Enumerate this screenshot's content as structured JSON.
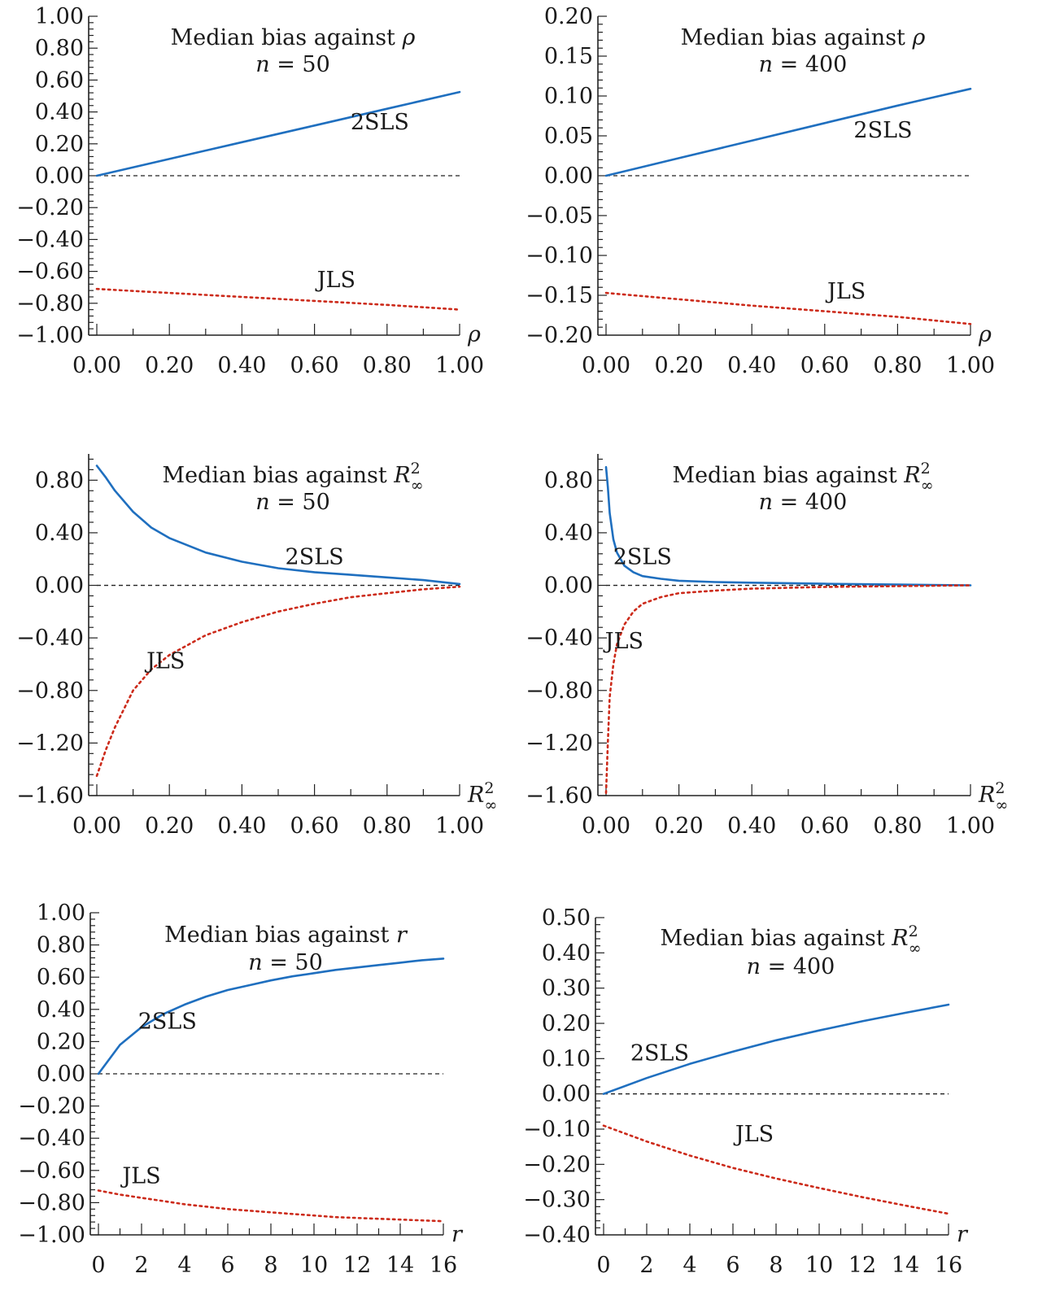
{
  "colors": {
    "tsls": "#1f6fbf",
    "jls": "#cc2a1a",
    "axis": "#222222"
  },
  "chart_data": [
    {
      "type": "line",
      "title": "Median bias against ρ",
      "subtitle": "n = 50",
      "xlabel": "ρ",
      "xlim": [
        0,
        1
      ],
      "ylim": [
        -1,
        1
      ],
      "xticks": [
        0,
        0.2,
        0.4,
        0.6,
        0.8,
        1.0
      ],
      "xtick_labels": [
        "0.00",
        "0.20",
        "0.40",
        "0.60",
        "0.80",
        "1.00"
      ],
      "yticks": [
        1,
        0.8,
        0.6,
        0.4,
        0.2,
        0,
        -0.2,
        -0.4,
        -0.6,
        -0.8,
        -1
      ],
      "ytick_labels": [
        "1.00",
        "0.80",
        "0.60",
        "0.40",
        "0.20",
        "0.00",
        "−0.20",
        "−0.40",
        "−0.60",
        "−0.80",
        "−1.00"
      ],
      "reference_line": 0,
      "series": [
        {
          "name": "2SLS",
          "style": "solid",
          "x": [
            0,
            0.2,
            0.4,
            0.6,
            0.8,
            1.0
          ],
          "y": [
            0.0,
            0.105,
            0.21,
            0.315,
            0.42,
            0.525
          ]
        },
        {
          "name": "JLS",
          "style": "dotted",
          "x": [
            0,
            0.2,
            0.4,
            0.6,
            0.8,
            1.0
          ],
          "y": [
            -0.71,
            -0.735,
            -0.76,
            -0.785,
            -0.81,
            -0.84
          ]
        }
      ],
      "annotations": [
        {
          "text": "2SLS",
          "x": 0.78,
          "y": 0.29
        },
        {
          "text": "JLS",
          "x": 0.66,
          "y": -0.7
        }
      ]
    },
    {
      "type": "line",
      "title": "Median bias against ρ",
      "subtitle": "n = 400",
      "xlabel": "ρ",
      "xlim": [
        0,
        1
      ],
      "ylim": [
        -0.2,
        0.2
      ],
      "xticks": [
        0,
        0.2,
        0.4,
        0.6,
        0.8,
        1.0
      ],
      "xtick_labels": [
        "0.00",
        "0.20",
        "0.40",
        "0.60",
        "0.80",
        "1.00"
      ],
      "yticks": [
        0.2,
        0.15,
        0.1,
        0.05,
        0,
        -0.05,
        -0.1,
        -0.15,
        -0.2
      ],
      "ytick_labels": [
        "0.20",
        "0.15",
        "0.10",
        "0.05",
        "0.00",
        "−0.05",
        "−0.10",
        "−0.15",
        "−0.20"
      ],
      "reference_line": 0,
      "series": [
        {
          "name": "2SLS",
          "style": "solid",
          "x": [
            0,
            0.2,
            0.4,
            0.6,
            0.8,
            1.0
          ],
          "y": [
            0.0,
            0.022,
            0.044,
            0.066,
            0.088,
            0.109
          ]
        },
        {
          "name": "JLS",
          "style": "dotted",
          "x": [
            0,
            0.2,
            0.4,
            0.6,
            0.8,
            1.0
          ],
          "y": [
            -0.147,
            -0.155,
            -0.163,
            -0.17,
            -0.177,
            -0.186
          ]
        }
      ],
      "annotations": [
        {
          "text": "2SLS",
          "x": 0.76,
          "y": 0.048
        },
        {
          "text": "JLS",
          "x": 0.66,
          "y": -0.154
        }
      ]
    },
    {
      "type": "line",
      "title": "Median bias against R²∞",
      "subtitle": "n = 50",
      "xlabel": "R²∞",
      "xlim": [
        0,
        1
      ],
      "ylim": [
        -1.6,
        1.0
      ],
      "xticks": [
        0,
        0.2,
        0.4,
        0.6,
        0.8,
        1.0
      ],
      "xtick_labels": [
        "0.00",
        "0.20",
        "0.40",
        "0.60",
        "0.80",
        "1.00"
      ],
      "yticks": [
        0.8,
        0.4,
        0,
        -0.4,
        -0.8,
        -1.2,
        -1.6
      ],
      "ytick_labels": [
        "0.80",
        "0.40",
        "0.00",
        "−0.40",
        "−0.80",
        "−1.20",
        "−1.60"
      ],
      "reference_line": 0,
      "series": [
        {
          "name": "2SLS",
          "style": "solid",
          "x": [
            0,
            0.025,
            0.05,
            0.1,
            0.15,
            0.2,
            0.3,
            0.4,
            0.5,
            0.6,
            0.7,
            0.8,
            0.9,
            1.0
          ],
          "y": [
            0.91,
            0.82,
            0.72,
            0.56,
            0.44,
            0.36,
            0.25,
            0.18,
            0.13,
            0.1,
            0.08,
            0.06,
            0.04,
            0.01
          ]
        },
        {
          "name": "JLS",
          "style": "dotted",
          "x": [
            0,
            0.025,
            0.05,
            0.1,
            0.15,
            0.2,
            0.3,
            0.4,
            0.5,
            0.6,
            0.7,
            0.8,
            0.9,
            1.0
          ],
          "y": [
            -1.45,
            -1.25,
            -1.08,
            -0.8,
            -0.64,
            -0.53,
            -0.38,
            -0.28,
            -0.2,
            -0.14,
            -0.09,
            -0.06,
            -0.03,
            -0.01
          ]
        }
      ],
      "annotations": [
        {
          "text": "2SLS",
          "x": 0.6,
          "y": 0.16
        },
        {
          "text": "JLS",
          "x": 0.19,
          "y": -0.63
        }
      ]
    },
    {
      "type": "line",
      "title": "Median bias against R²∞",
      "subtitle": "n = 400",
      "xlabel": "R²∞",
      "xlim": [
        0,
        1
      ],
      "ylim": [
        -1.6,
        1.0
      ],
      "xticks": [
        0,
        0.2,
        0.4,
        0.6,
        0.8,
        1.0
      ],
      "xtick_labels": [
        "0.00",
        "0.20",
        "0.40",
        "0.60",
        "0.80",
        "1.00"
      ],
      "yticks": [
        0.8,
        0.4,
        0,
        -0.4,
        -0.8,
        -1.2,
        -1.6
      ],
      "ytick_labels": [
        "0.80",
        "0.40",
        "0.00",
        "−0.40",
        "−0.80",
        "−1.20",
        "−1.60"
      ],
      "reference_line": 0,
      "series": [
        {
          "name": "2SLS",
          "style": "solid",
          "x": [
            0,
            0.005,
            0.01,
            0.02,
            0.03,
            0.05,
            0.075,
            0.1,
            0.15,
            0.2,
            0.3,
            0.4,
            0.6,
            0.8,
            1.0
          ],
          "y": [
            0.9,
            0.75,
            0.55,
            0.35,
            0.25,
            0.15,
            0.1,
            0.07,
            0.05,
            0.035,
            0.025,
            0.02,
            0.012,
            0.006,
            0.0
          ]
        },
        {
          "name": "JLS",
          "style": "dotted",
          "x": [
            0,
            0.005,
            0.01,
            0.02,
            0.03,
            0.05,
            0.075,
            0.1,
            0.15,
            0.2,
            0.3,
            0.4,
            0.6,
            0.8,
            1.0
          ],
          "y": [
            -1.58,
            -1.2,
            -0.85,
            -0.6,
            -0.45,
            -0.3,
            -0.2,
            -0.14,
            -0.09,
            -0.06,
            -0.04,
            -0.025,
            -0.012,
            -0.006,
            0.0
          ]
        }
      ],
      "annotations": [
        {
          "text": "2SLS",
          "x": 0.1,
          "y": 0.16
        },
        {
          "text": "JLS",
          "x": 0.05,
          "y": -0.48
        }
      ]
    },
    {
      "type": "line",
      "title": "Median bias against r",
      "subtitle": "n = 50",
      "xlabel": "r",
      "xlim": [
        0,
        16
      ],
      "ylim": [
        -1,
        1
      ],
      "xticks": [
        0,
        2,
        4,
        6,
        8,
        10,
        12,
        14,
        16
      ],
      "xtick_labels": [
        "0",
        "2",
        "4",
        "6",
        "8",
        "10",
        "12",
        "14",
        "16"
      ],
      "yticks": [
        1,
        0.8,
        0.6,
        0.4,
        0.2,
        0,
        -0.2,
        -0.4,
        -0.6,
        -0.8,
        -1
      ],
      "ytick_labels": [
        "1.00",
        "0.80",
        "0.60",
        "0.40",
        "0.20",
        "0.00",
        "−0.20",
        "−0.40",
        "−0.60",
        "−0.80",
        "−1.00"
      ],
      "reference_line": 0,
      "series": [
        {
          "name": "2SLS",
          "style": "solid",
          "x": [
            0,
            1,
            2,
            3,
            4,
            5,
            6,
            7,
            8,
            9,
            10,
            11,
            12,
            13,
            14,
            15,
            16
          ],
          "y": [
            0.0,
            0.18,
            0.29,
            0.37,
            0.43,
            0.48,
            0.52,
            0.55,
            0.58,
            0.605,
            0.625,
            0.645,
            0.66,
            0.675,
            0.69,
            0.705,
            0.715
          ]
        },
        {
          "name": "JLS",
          "style": "dotted",
          "x": [
            0,
            1,
            2,
            3,
            4,
            5,
            6,
            7,
            8,
            9,
            10,
            11,
            12,
            13,
            14,
            15,
            16
          ],
          "y": [
            -0.725,
            -0.75,
            -0.77,
            -0.79,
            -0.81,
            -0.825,
            -0.84,
            -0.85,
            -0.86,
            -0.87,
            -0.88,
            -0.89,
            -0.895,
            -0.9,
            -0.905,
            -0.91,
            -0.915
          ]
        }
      ],
      "annotations": [
        {
          "text": "2SLS",
          "x": 3.2,
          "y": 0.28
        },
        {
          "text": "JLS",
          "x": 2.0,
          "y": -0.68
        }
      ]
    },
    {
      "type": "line",
      "title": "Median bias against R²∞",
      "subtitle": "n = 400",
      "xlabel": "r",
      "xlim": [
        0,
        16
      ],
      "ylim": [
        -0.4,
        0.5
      ],
      "xticks": [
        0,
        2,
        4,
        6,
        8,
        10,
        12,
        14,
        16
      ],
      "xtick_labels": [
        "0",
        "2",
        "4",
        "6",
        "8",
        "10",
        "12",
        "14",
        "16"
      ],
      "yticks": [
        0.5,
        0.4,
        0.3,
        0.2,
        0.1,
        0,
        -0.1,
        -0.2,
        -0.3,
        -0.4
      ],
      "ytick_labels": [
        "0.50",
        "0.40",
        "0.30",
        "0.20",
        "0.10",
        "0.00",
        "−0.10",
        "−0.20",
        "−0.30",
        "−0.40"
      ],
      "reference_line": 0,
      "series": [
        {
          "name": "2SLS",
          "style": "solid",
          "x": [
            0,
            2,
            4,
            6,
            8,
            10,
            12,
            14,
            16
          ],
          "y": [
            0.0,
            0.045,
            0.085,
            0.12,
            0.152,
            0.18,
            0.206,
            0.23,
            0.253
          ]
        },
        {
          "name": "JLS",
          "style": "dotted",
          "x": [
            0,
            2,
            4,
            6,
            8,
            10,
            12,
            14,
            16
          ],
          "y": [
            -0.09,
            -0.135,
            -0.175,
            -0.21,
            -0.24,
            -0.267,
            -0.293,
            -0.317,
            -0.34
          ]
        }
      ],
      "annotations": [
        {
          "text": "2SLS",
          "x": 2.6,
          "y": 0.095
        },
        {
          "text": "JLS",
          "x": 7.0,
          "y": -0.135
        }
      ]
    }
  ]
}
